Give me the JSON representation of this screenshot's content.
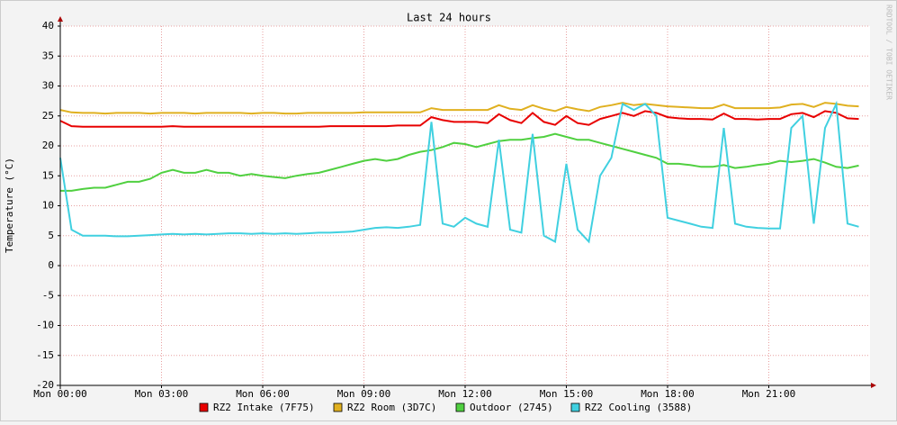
{
  "chart_data": {
    "type": "line",
    "title": "Last 24 hours",
    "y_label": "Temperature (°C)",
    "side_note": "RRDTOOL / TOBI OETIKER",
    "x": [
      "Mon 00:00",
      "Mon 00:20",
      "Mon 00:40",
      "Mon 01:00",
      "Mon 01:20",
      "Mon 01:40",
      "Mon 02:00",
      "Mon 02:20",
      "Mon 02:40",
      "Mon 03:00",
      "Mon 03:20",
      "Mon 03:40",
      "Mon 04:00",
      "Mon 04:20",
      "Mon 04:40",
      "Mon 05:00",
      "Mon 05:20",
      "Mon 05:40",
      "Mon 06:00",
      "Mon 06:20",
      "Mon 06:40",
      "Mon 07:00",
      "Mon 07:20",
      "Mon 07:40",
      "Mon 08:00",
      "Mon 08:20",
      "Mon 08:40",
      "Mon 09:00",
      "Mon 09:20",
      "Mon 09:40",
      "Mon 10:00",
      "Mon 10:20",
      "Mon 10:40",
      "Mon 11:00",
      "Mon 11:20",
      "Mon 11:40",
      "Mon 12:00",
      "Mon 12:20",
      "Mon 12:40",
      "Mon 13:00",
      "Mon 13:20",
      "Mon 13:40",
      "Mon 14:00",
      "Mon 14:20",
      "Mon 14:40",
      "Mon 15:00",
      "Mon 15:20",
      "Mon 15:40",
      "Mon 16:00",
      "Mon 16:20",
      "Mon 16:40",
      "Mon 17:00",
      "Mon 17:20",
      "Mon 17:40",
      "Mon 18:00",
      "Mon 18:20",
      "Mon 18:40",
      "Mon 19:00",
      "Mon 19:20",
      "Mon 19:40",
      "Mon 20:00",
      "Mon 20:20",
      "Mon 20:40",
      "Mon 21:00",
      "Mon 21:20",
      "Mon 21:40",
      "Mon 22:00",
      "Mon 22:20",
      "Mon 22:40",
      "Mon 23:00",
      "Mon 23:20",
      "Mon 23:40"
    ],
    "xlim": [
      "Mon 00:00",
      "Tue 00:00"
    ],
    "xticks": [
      "Mon 00:00",
      "Mon 03:00",
      "Mon 06:00",
      "Mon 09:00",
      "Mon 12:00",
      "Mon 15:00",
      "Mon 18:00",
      "Mon 21:00"
    ],
    "ylim": [
      -20,
      40
    ],
    "yticks": [
      40,
      35,
      30,
      25,
      20,
      15,
      10,
      5,
      0,
      -5,
      -10,
      -15,
      -20
    ],
    "grid": true,
    "series": [
      {
        "name": "RZ2 Intake (7F75)",
        "color": "#e80000",
        "values": [
          24.2,
          23.3,
          23.2,
          23.2,
          23.2,
          23.2,
          23.2,
          23.2,
          23.2,
          23.2,
          23.3,
          23.2,
          23.2,
          23.2,
          23.2,
          23.2,
          23.2,
          23.2,
          23.2,
          23.2,
          23.2,
          23.2,
          23.2,
          23.2,
          23.3,
          23.3,
          23.3,
          23.3,
          23.3,
          23.3,
          23.4,
          23.4,
          23.4,
          24.8,
          24.3,
          24,
          24,
          24,
          23.8,
          25.3,
          24.3,
          23.8,
          25.5,
          24,
          23.5,
          25,
          23.8,
          23.5,
          24.5,
          25,
          25.5,
          25,
          25.8,
          25.5,
          24.8,
          24.6,
          24.5,
          24.5,
          24.4,
          25.4,
          24.5,
          24.5,
          24.4,
          24.5,
          24.5,
          25.3,
          25.5,
          24.8,
          25.8,
          25.5,
          24.6,
          24.5
        ]
      },
      {
        "name": "RZ2 Room (3D7C)",
        "color": "#e0b020",
        "values": [
          26,
          25.6,
          25.5,
          25.5,
          25.4,
          25.5,
          25.5,
          25.5,
          25.4,
          25.5,
          25.5,
          25.5,
          25.4,
          25.5,
          25.5,
          25.5,
          25.5,
          25.4,
          25.5,
          25.5,
          25.4,
          25.4,
          25.5,
          25.5,
          25.5,
          25.5,
          25.5,
          25.6,
          25.6,
          25.6,
          25.6,
          25.6,
          25.6,
          26.3,
          26,
          26,
          26,
          26,
          26,
          26.8,
          26.2,
          26,
          26.8,
          26.2,
          25.8,
          26.5,
          26.1,
          25.8,
          26.5,
          26.8,
          27.2,
          26.8,
          27,
          26.8,
          26.6,
          26.5,
          26.4,
          26.3,
          26.3,
          26.9,
          26.3,
          26.3,
          26.3,
          26.3,
          26.4,
          26.9,
          27,
          26.5,
          27.2,
          27,
          26.7,
          26.6
        ]
      },
      {
        "name": "Outdoor (2745)",
        "color": "#50d040",
        "values": [
          12.5,
          12.5,
          12.8,
          13,
          13,
          13.5,
          14,
          14,
          14.5,
          15.5,
          16,
          15.5,
          15.5,
          16,
          15.5,
          15.5,
          15,
          15.3,
          15,
          14.8,
          14.6,
          15,
          15.3,
          15.5,
          16,
          16.5,
          17,
          17.5,
          17.8,
          17.5,
          17.8,
          18.5,
          19,
          19.3,
          19.8,
          20.5,
          20.3,
          19.8,
          20.3,
          20.8,
          21,
          21,
          21.3,
          21.5,
          22,
          21.5,
          21,
          21,
          20.5,
          20,
          19.5,
          19,
          18.5,
          18,
          17,
          17,
          16.8,
          16.5,
          16.5,
          16.8,
          16.3,
          16.5,
          16.8,
          17,
          17.5,
          17.3,
          17.5,
          17.8,
          17.2,
          16.5,
          16.3,
          16.7
        ]
      },
      {
        "name": "RZ2 Cooling (3588)",
        "color": "#40d0e0",
        "values": [
          18,
          6,
          5,
          5,
          5,
          4.9,
          4.9,
          5,
          5.1,
          5.2,
          5.3,
          5.2,
          5.3,
          5.2,
          5.3,
          5.4,
          5.4,
          5.3,
          5.4,
          5.3,
          5.4,
          5.3,
          5.4,
          5.5,
          5.5,
          5.6,
          5.7,
          6,
          6.3,
          6.4,
          6.3,
          6.5,
          6.8,
          24,
          7,
          6.5,
          8,
          7,
          6.5,
          21,
          6,
          5.5,
          22,
          5,
          4,
          17,
          6,
          4,
          15,
          18,
          27,
          26,
          27,
          25,
          8,
          7.5,
          7,
          6.5,
          6.3,
          23,
          7,
          6.5,
          6.3,
          6.2,
          6.2,
          23,
          25,
          7,
          23,
          27,
          7,
          6.5
        ]
      }
    ]
  }
}
